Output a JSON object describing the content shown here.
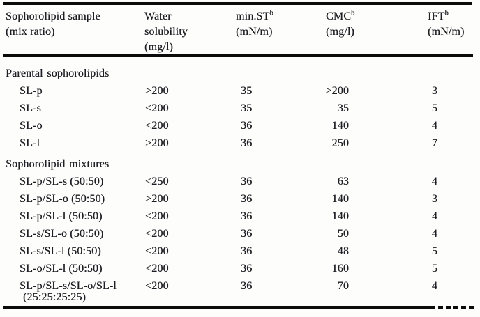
{
  "table": {
    "columns": [
      {
        "line1": "Sophorolipid sample",
        "line2": "(mix ratio)"
      },
      {
        "line1": "Water",
        "line2": "solubility",
        "line3": "(mg/l)"
      },
      {
        "line1": "min.ST",
        "sup": "b",
        "line2": "(mN/m)"
      },
      {
        "line1": "CMC",
        "sup": "b",
        "line2": "(mg/l)"
      },
      {
        "line1": "IFT",
        "sup": "b",
        "line2": "(mN/m)"
      }
    ],
    "sections": [
      {
        "header": "Parental sophorolipids",
        "rows": [
          {
            "sample": "SL-p",
            "water": ">200",
            "min_st": "35",
            "cmc": ">200",
            "ift": "3"
          },
          {
            "sample": "SL-s",
            "water": "<200",
            "min_st": "35",
            "cmc": "35",
            "ift": "5"
          },
          {
            "sample": "SL-o",
            "water": "<200",
            "min_st": "36",
            "cmc": "140",
            "ift": "4"
          },
          {
            "sample": "SL-l",
            "water": ">200",
            "min_st": "36",
            "cmc": "250",
            "ift": "7"
          }
        ]
      },
      {
        "header": "Sophorolipid mixtures",
        "rows": [
          {
            "sample": "SL-p/SL-s (50:50)",
            "water": "<250",
            "min_st": "36",
            "cmc": "63",
            "ift": "4"
          },
          {
            "sample": "SL-p/SL-o (50:50)",
            "water": ">200",
            "min_st": "36",
            "cmc": "140",
            "ift": "3"
          },
          {
            "sample": "SL-p/SL-l (50:50)",
            "water": "<200",
            "min_st": "36",
            "cmc": "140",
            "ift": "4"
          },
          {
            "sample": "SL-s/SL-o (50:50)",
            "water": "<200",
            "min_st": "36",
            "cmc": "50",
            "ift": "4"
          },
          {
            "sample": "SL-s/SL-l (50:50)",
            "water": "<200",
            "min_st": "36",
            "cmc": "48",
            "ift": "5"
          },
          {
            "sample": "SL-o/SL-l (50:50)",
            "water": "<200",
            "min_st": "36",
            "cmc": "160",
            "ift": "5"
          },
          {
            "sample": "SL-p/SL-s/SL-o/SL-l",
            "sample_line2": "(25:25:25:25)",
            "water": "<200",
            "min_st": "36",
            "cmc": "70",
            "ift": "4"
          }
        ]
      }
    ]
  },
  "colors": {
    "background": "#fdfdfc",
    "text": "#1e1e24",
    "rule": "#0b0b0b"
  }
}
